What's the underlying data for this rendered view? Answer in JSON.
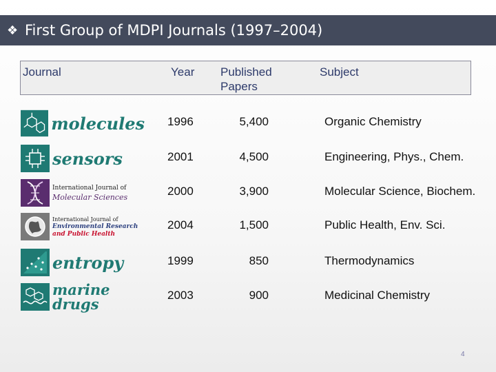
{
  "title": {
    "bullet": "❖",
    "text": "First Group of MDPI Journals (1997–2004)"
  },
  "table": {
    "headers": {
      "journal": "Journal",
      "year": "Year",
      "papers_line1": "Published",
      "papers_line2": "Papers",
      "subject": "Subject"
    },
    "rows": [
      {
        "logo_icon": "molecules-logo-icon",
        "logo_text": "molecules",
        "year": "1996",
        "papers": "5,400",
        "subject": "Organic Chemistry"
      },
      {
        "logo_icon": "sensors-logo-icon",
        "logo_text": "sensors",
        "year": "2001",
        "papers": "4,500",
        "subject": "Engineering, Phys., Chem."
      },
      {
        "logo_icon": "ijms-logo-icon",
        "logo_line1": "International Journal of",
        "logo_line2": "Molecular Sciences",
        "year": "2000",
        "papers": "3,900",
        "subject": "Molecular Science, Biochem."
      },
      {
        "logo_icon": "ijerph-logo-icon",
        "logo_line1": "International Journal of",
        "logo_line2": "Environmental Research",
        "logo_line3": "and Public Health",
        "year": "2004",
        "papers": "1,500",
        "subject": "Public Health, Env. Sci."
      },
      {
        "logo_icon": "entropy-logo-icon",
        "logo_text": "entropy",
        "year": "1999",
        "papers": "850",
        "subject": "Thermodynamics"
      },
      {
        "logo_icon": "marine-drugs-logo-icon",
        "logo_line1": "marine",
        "logo_line2": "drugs",
        "year": "2003",
        "papers": "900",
        "subject": "Medicinal Chemistry"
      }
    ]
  },
  "page_number": "4",
  "colors": {
    "title_bar": "#434a5c",
    "header_text": "#2d3a6a",
    "logo_teal": "#1f7a73",
    "logo_purple": "#5a2d6e",
    "logo_red": "#c8102e",
    "logo_navy": "#2b3f7e",
    "logo_dark_green": "#1f5a55"
  }
}
